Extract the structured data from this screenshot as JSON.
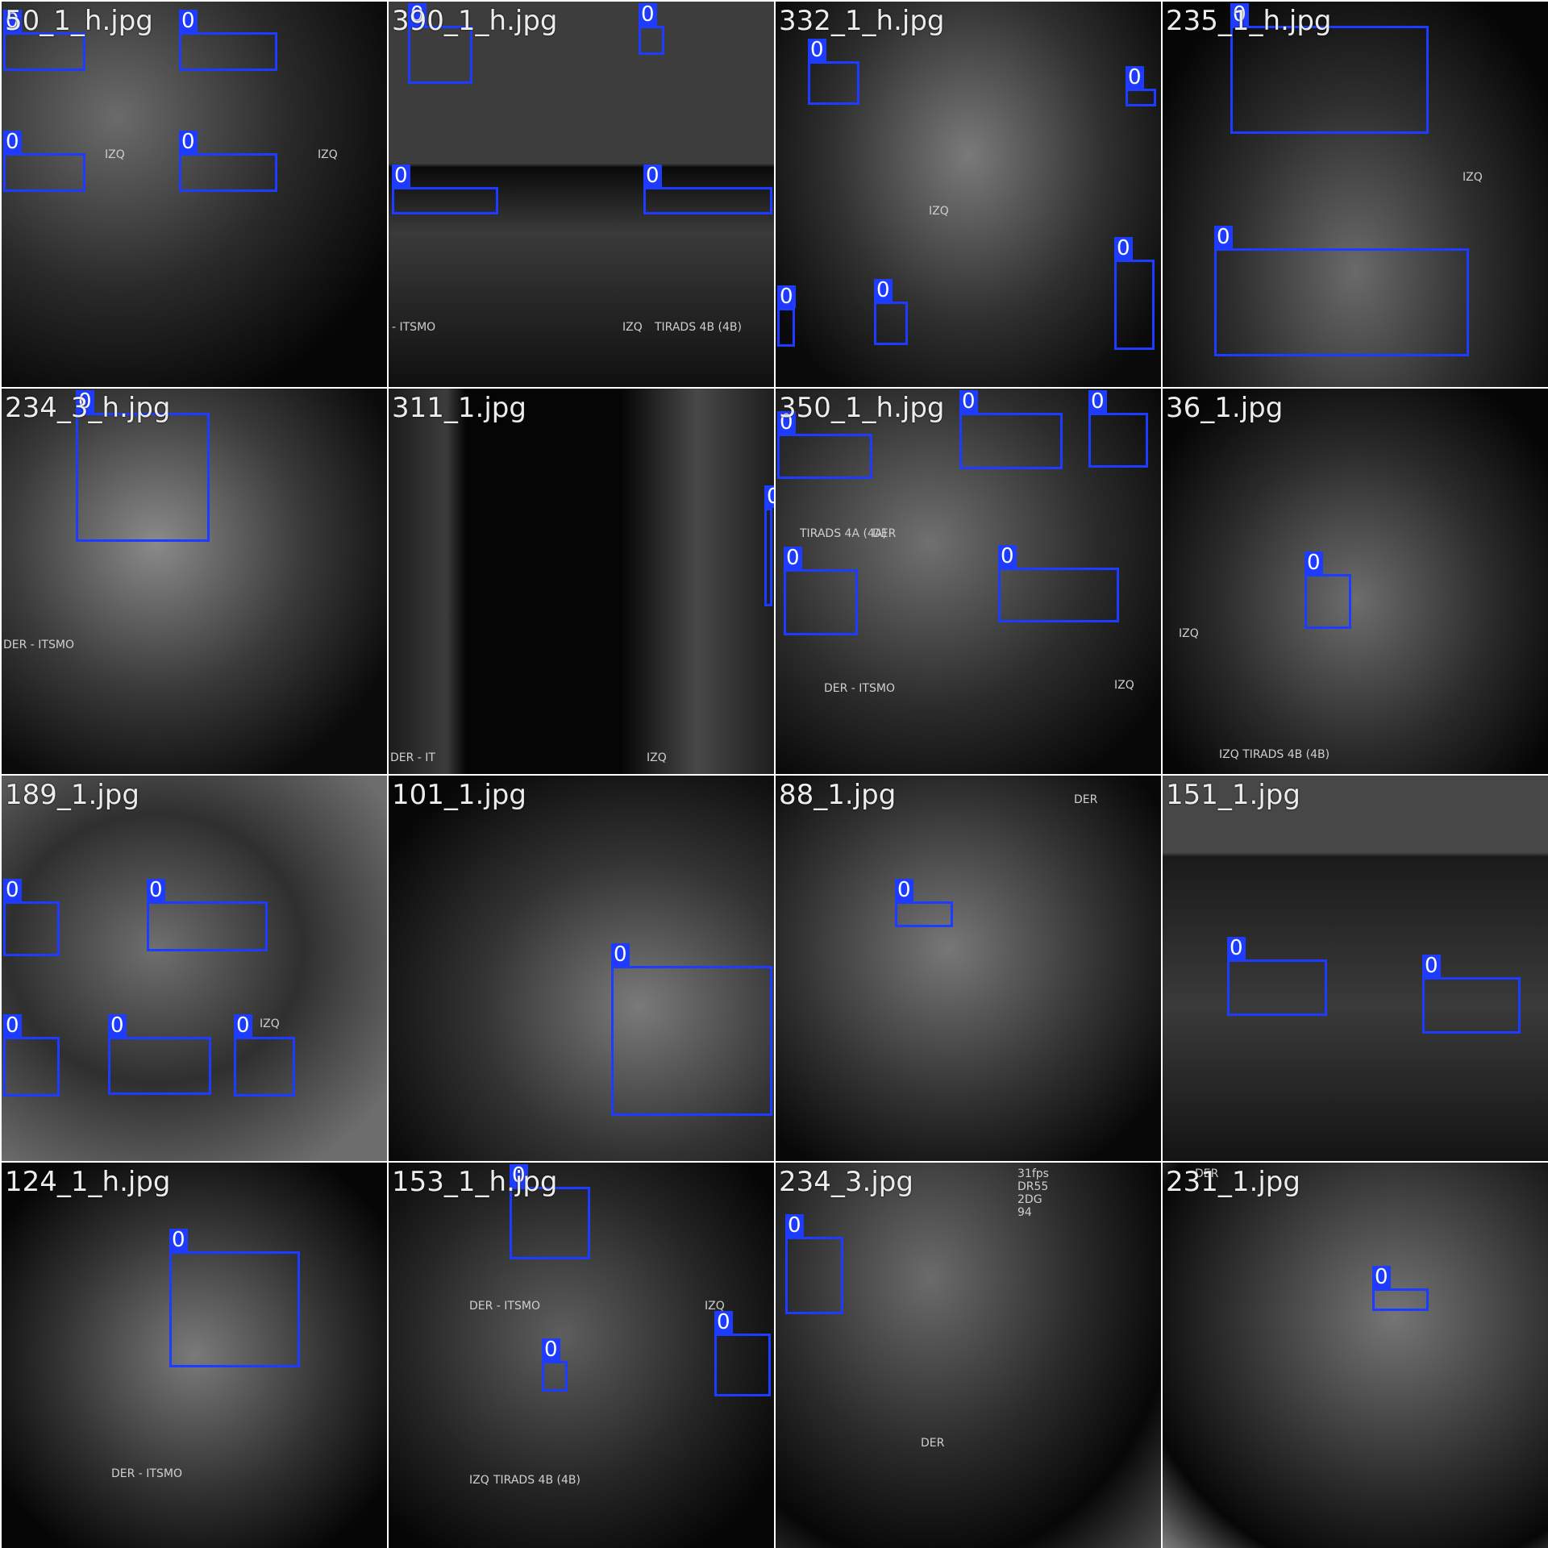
{
  "mosaic": {
    "box_color": "#1e3cff",
    "tiles": [
      {
        "title": "50_1_h.jpg",
        "labels": [
          "IZQ",
          "IZQ"
        ],
        "detections": [
          {
            "cls": "0"
          },
          {
            "cls": "0"
          },
          {
            "cls": "0"
          },
          {
            "cls": "0"
          }
        ]
      },
      {
        "title": "390_1_h.jpg",
        "labels": [
          "- ITSMO",
          "IZQ",
          "TIRADS 4B (4B)"
        ],
        "detections": [
          {
            "cls": "0"
          },
          {
            "cls": "0"
          },
          {
            "cls": "0"
          },
          {
            "cls": "0"
          }
        ]
      },
      {
        "title": "332_1_h.jpg",
        "labels": [
          "IZQ"
        ],
        "detections": [
          {
            "cls": "0"
          },
          {
            "cls": "0"
          },
          {
            "cls": "0"
          },
          {
            "cls": "0"
          },
          {
            "cls": "0"
          },
          {
            "cls": "0"
          }
        ]
      },
      {
        "title": "235_1_h.jpg",
        "labels": [
          "IZQ"
        ],
        "detections": [
          {
            "cls": "0"
          },
          {
            "cls": "0"
          }
        ]
      },
      {
        "title": "234_3_h.jpg",
        "labels": [
          "DER - ITSMO"
        ],
        "detections": [
          {
            "cls": "0"
          }
        ]
      },
      {
        "title": "311_1.jpg",
        "labels": [
          "DER - IT",
          "IZQ"
        ],
        "detections": [
          {
            "cls": "0"
          }
        ]
      },
      {
        "title": "350_1_h.jpg",
        "labels": [
          "TIRADS 4A (4A)",
          "DER",
          "DER - ITSMO",
          "IZQ"
        ],
        "detections": [
          {
            "cls": "0"
          },
          {
            "cls": "0"
          },
          {
            "cls": "0"
          },
          {
            "cls": "0"
          },
          {
            "cls": "0"
          }
        ]
      },
      {
        "title": "36_1.jpg",
        "labels": [
          "IZQ",
          "IZQ  TIRADS 4B (4B)"
        ],
        "detections": [
          {
            "cls": "0"
          }
        ]
      },
      {
        "title": "189_1.jpg",
        "labels": [
          "IZQ"
        ],
        "detections": [
          {
            "cls": "0"
          },
          {
            "cls": "0"
          },
          {
            "cls": "0"
          },
          {
            "cls": "0"
          },
          {
            "cls": "0"
          }
        ]
      },
      {
        "title": "101_1.jpg",
        "labels": [],
        "detections": [
          {
            "cls": "0"
          }
        ]
      },
      {
        "title": "88_1.jpg",
        "labels": [
          "DER"
        ],
        "detections": [
          {
            "cls": "0"
          }
        ]
      },
      {
        "title": "151_1.jpg",
        "labels": [],
        "detections": [
          {
            "cls": "0"
          },
          {
            "cls": "0"
          }
        ]
      },
      {
        "title": "124_1_h.jpg",
        "labels": [
          "DER - ITSMO"
        ],
        "detections": [
          {
            "cls": "0"
          }
        ]
      },
      {
        "title": "153_1_h.jpg",
        "labels": [
          "DER - ITSMO",
          "IZQ",
          "IZQ",
          "TIRADS 4B (4B)"
        ],
        "detections": [
          {
            "cls": "0"
          },
          {
            "cls": "0"
          },
          {
            "cls": "0"
          }
        ]
      },
      {
        "title": "234_3.jpg",
        "labels": [
          "DER",
          "31fps",
          "DR55",
          "2DG",
          "94"
        ],
        "detections": [
          {
            "cls": "0"
          }
        ]
      },
      {
        "title": "231_1.jpg",
        "labels": [
          "DER"
        ],
        "detections": [
          {
            "cls": "0"
          }
        ]
      }
    ]
  }
}
